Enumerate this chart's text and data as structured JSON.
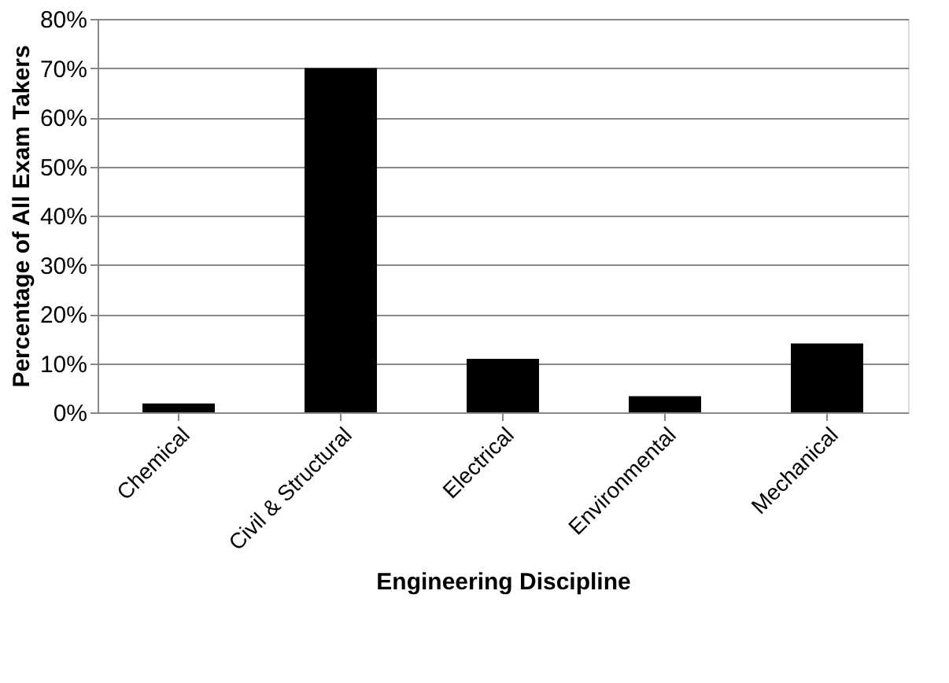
{
  "chart_data": {
    "type": "bar",
    "xlabel": "Engineering Discipline",
    "ylabel": "Percentage of All Exam Takers",
    "categories": [
      "Chemical",
      "Civil & Structural",
      "Electrical",
      "Environmental",
      "Mechanical"
    ],
    "values": [
      1.8,
      70,
      10.9,
      3.3,
      14
    ],
    "color": "#000000",
    "ylim": [
      0,
      80
    ],
    "yticks": [
      {
        "value": 0,
        "label": "0%"
      },
      {
        "value": 10,
        "label": "10%"
      },
      {
        "value": 20,
        "label": "20%"
      },
      {
        "value": 30,
        "label": "30%"
      },
      {
        "value": 40,
        "label": "40%"
      },
      {
        "value": 50,
        "label": "50%"
      },
      {
        "value": 60,
        "label": "60%"
      },
      {
        "value": 70,
        "label": "70%"
      },
      {
        "value": 80,
        "label": "80%"
      }
    ],
    "grid": "y"
  }
}
